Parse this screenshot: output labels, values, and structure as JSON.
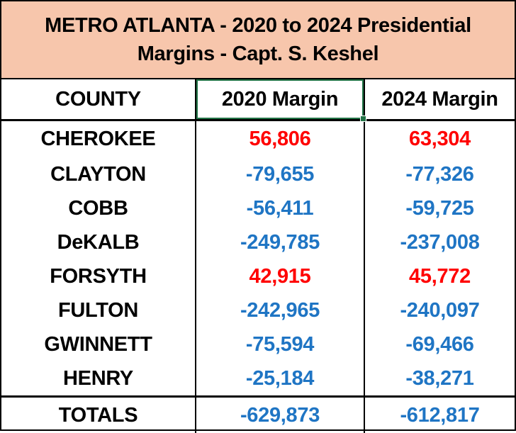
{
  "title": {
    "line1": "METRO ATLANTA -  2020 to 2024 Presidential",
    "line2": "Margins - Capt. S. Keshel"
  },
  "headers": {
    "county": "COUNTY",
    "margin_2020": "2020 Margin",
    "margin_2024": "2024 Margin"
  },
  "rows": [
    {
      "county": "CHEROKEE",
      "m2020": "56,806",
      "m2024": "63,304"
    },
    {
      "county": "CLAYTON",
      "m2020": "-79,655",
      "m2024": "-77,326"
    },
    {
      "county": "COBB",
      "m2020": "-56,411",
      "m2024": "-59,725"
    },
    {
      "county": "DeKALB",
      "m2020": "-249,785",
      "m2024": "-237,008"
    },
    {
      "county": "FORSYTH",
      "m2020": "42,915",
      "m2024": "45,772"
    },
    {
      "county": "FULTON",
      "m2020": "-242,965",
      "m2024": "-240,097"
    },
    {
      "county": "GWINNETT",
      "m2020": "-75,594",
      "m2024": "-69,466"
    },
    {
      "county": "HENRY",
      "m2020": "-25,184",
      "m2024": "-38,271"
    }
  ],
  "totals": {
    "label": "TOTALS",
    "m2020": "-629,873",
    "m2024": "-612,817"
  },
  "colors": {
    "positive": "#ff0000",
    "negative": "#1f75c4",
    "header_fill": "#f7c6ac",
    "selection": "#217346"
  }
}
